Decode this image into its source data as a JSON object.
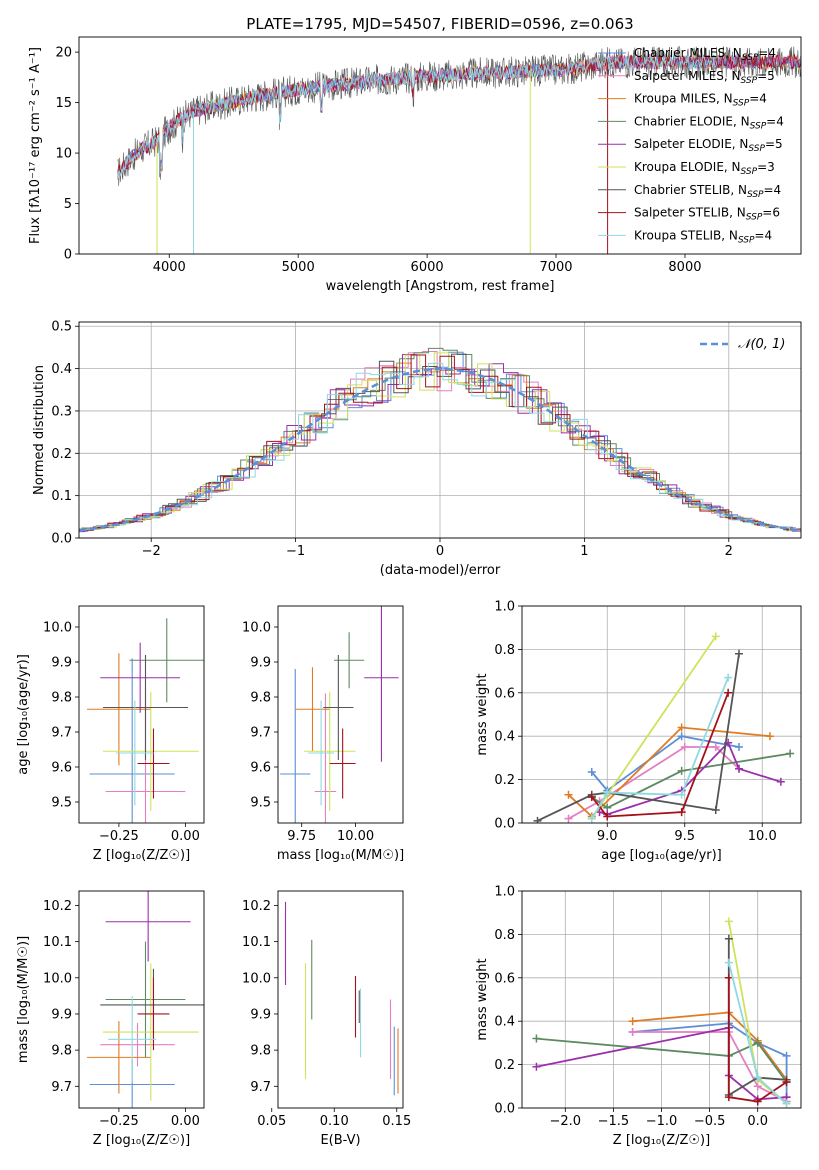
{
  "colors": {
    "chabrier_miles": "#5b8fd6",
    "salpeter_miles": "#e47fc2",
    "kroupa_miles": "#e07b22",
    "chabrier_elodie": "#5e8a62",
    "salpeter_elodie": "#9b2fae",
    "kroupa_elodie": "#cfe35a",
    "chabrier_stelib": "#555555",
    "salpeter_stelib": "#a3121b",
    "kroupa_stelib": "#8fd9e0",
    "normal": "#5b8fd6"
  },
  "chart_data": [
    {
      "id": "spectrum",
      "type": "line",
      "title": "PLATE=1795, MJD=54507, FIBERID=0596, z=0.063",
      "xlabel": "wavelength [Angstrom, rest frame]",
      "ylabel": "Flux [fλ10⁻¹⁷ erg cm⁻² s⁻¹ A⁻¹]",
      "xlim": [
        3300,
        8900
      ],
      "ylim": [
        0,
        21.5
      ],
      "xticks": [
        4000,
        5000,
        6000,
        7000,
        8000
      ],
      "yticks": [
        0,
        5,
        10,
        15,
        20
      ],
      "grid": false,
      "legend_position": "right",
      "legend": [
        {
          "label": "Chabrier MILES, N",
          "sub": "SSP",
          "tail": "=4",
          "color": "chabrier_miles"
        },
        {
          "label": "Salpeter MILES, N",
          "sub": "SSP",
          "tail": "=5",
          "color": "salpeter_miles"
        },
        {
          "label": "Kroupa MILES, N",
          "sub": "SSP",
          "tail": "=4",
          "color": "kroupa_miles"
        },
        {
          "label": "Chabrier ELODIE, N",
          "sub": "SSP",
          "tail": "=4",
          "color": "chabrier_elodie"
        },
        {
          "label": "Salpeter ELODIE, N",
          "sub": "SSP",
          "tail": "=5",
          "color": "salpeter_elodie"
        },
        {
          "label": "Kroupa ELODIE, N",
          "sub": "SSP",
          "tail": "=3",
          "color": "kroupa_elodie"
        },
        {
          "label": "Chabrier STELIB, N",
          "sub": "SSP",
          "tail": "=4",
          "color": "chabrier_stelib"
        },
        {
          "label": "Salpeter STELIB, N",
          "sub": "SSP",
          "tail": "=6",
          "color": "salpeter_stelib"
        },
        {
          "label": "Kroupa STELIB, N",
          "sub": "SSP",
          "tail": "=4",
          "color": "kroupa_stelib"
        }
      ],
      "continuum": {
        "x": [
          3600,
          3700,
          3800,
          3900,
          4000,
          4100,
          4200,
          4400,
          4600,
          4800,
          5000,
          5200,
          5400,
          5600,
          5800,
          6000,
          6200,
          6400,
          6600,
          6800,
          7000,
          7200,
          7400
        ],
        "y": [
          8,
          9.5,
          10.5,
          11.2,
          12.5,
          13.5,
          14.2,
          14.8,
          15.4,
          15.9,
          16.3,
          16.6,
          16.9,
          17.2,
          17.4,
          17.6,
          17.7,
          17.9,
          18.0,
          18.1,
          18.2,
          18.5,
          19.0
        ]
      },
      "data_end": 8950
    },
    {
      "id": "residuals",
      "type": "histogram",
      "xlabel": "(data-model)/error",
      "ylabel": "Normed distribution",
      "xlim": [
        -2.5,
        2.5
      ],
      "ylim": [
        0,
        0.51
      ],
      "xticks": [
        -2,
        -1,
        0,
        1,
        2
      ],
      "yticks": [
        0.0,
        0.1,
        0.2,
        0.3,
        0.4,
        0.5
      ],
      "grid": true,
      "legend_position": "top-right",
      "legend": [
        {
          "label": "𝒩(0, 1)",
          "color": "normal"
        }
      ],
      "bin_width": 0.1
    },
    {
      "id": "z-age",
      "type": "errorbar",
      "xlabel": "Z [log₁₀(Z/Z☉)]",
      "ylabel": "age  [log₁₀(age/yr)]",
      "xlim": [
        -0.4,
        0.07
      ],
      "ylim": [
        9.44,
        10.06
      ],
      "xticks": [
        -0.25,
        0.0
      ],
      "yticks": [
        9.5,
        9.6,
        9.7,
        9.8,
        9.9,
        10.0
      ],
      "grid": false,
      "points": [
        {
          "series": "chabrier_miles",
          "x": -0.2,
          "xerr": 0.16,
          "y": 9.58,
          "yerr": 0.33
        },
        {
          "series": "salpeter_miles",
          "x": -0.15,
          "xerr": 0.15,
          "y": 9.53,
          "yerr": 0.3
        },
        {
          "series": "kroupa_miles",
          "x": -0.25,
          "xerr": 0.12,
          "y": 9.765,
          "yerr": 0.16
        },
        {
          "series": "chabrier_elodie",
          "x": -0.07,
          "xerr": 0.14,
          "y": 9.905,
          "yerr": 0.12
        },
        {
          "series": "salpeter_elodie",
          "x": -0.17,
          "xerr": 0.15,
          "y": 9.855,
          "yerr": 0.1
        },
        {
          "series": "kroupa_elodie",
          "x": -0.13,
          "xerr": 0.18,
          "y": 9.645,
          "yerr": 0.17
        },
        {
          "series": "chabrier_stelib",
          "x": -0.15,
          "xerr": 0.16,
          "y": 9.77,
          "yerr": 0.15
        },
        {
          "series": "salpeter_stelib",
          "x": -0.12,
          "xerr": 0.06,
          "y": 9.61,
          "yerr": 0.1
        },
        {
          "series": "kroupa_stelib",
          "x": -0.19,
          "xerr": 0.07,
          "y": 9.64,
          "yerr": 0.15
        }
      ]
    },
    {
      "id": "mass-age",
      "type": "errorbar",
      "xlabel": "mass [log₁₀(M/M☉)]",
      "ylabel": "",
      "xlim": [
        9.64,
        10.22
      ],
      "ylim": [
        9.44,
        10.06
      ],
      "xticks": [
        9.75,
        10.0
      ],
      "yticks": [
        9.5,
        9.6,
        9.7,
        9.8,
        9.9,
        10.0
      ],
      "grid": false,
      "points": [
        {
          "series": "chabrier_miles",
          "x": 9.72,
          "xerr": 0.07,
          "y": 9.58,
          "yerr": 0.3
        },
        {
          "series": "salpeter_miles",
          "x": 9.86,
          "xerr": 0.05,
          "y": 9.53,
          "yerr": 0.28
        },
        {
          "series": "kroupa_miles",
          "x": 9.8,
          "xerr": 0.08,
          "y": 9.765,
          "yerr": 0.12
        },
        {
          "series": "chabrier_elodie",
          "x": 9.97,
          "xerr": 0.07,
          "y": 9.905,
          "yerr": 0.08
        },
        {
          "series": "salpeter_elodie",
          "x": 10.12,
          "xerr": 0.08,
          "y": 9.855,
          "yerr": 0.24
        },
        {
          "series": "kroupa_elodie",
          "x": 9.88,
          "xerr": 0.12,
          "y": 9.645,
          "yerr": 0.17
        },
        {
          "series": "chabrier_stelib",
          "x": 9.92,
          "xerr": 0.07,
          "y": 9.77,
          "yerr": 0.15
        },
        {
          "series": "salpeter_stelib",
          "x": 9.94,
          "xerr": 0.06,
          "y": 9.61,
          "yerr": 0.1
        },
        {
          "series": "kroupa_stelib",
          "x": 9.84,
          "xerr": 0.06,
          "y": 9.64,
          "yerr": 0.15
        }
      ]
    },
    {
      "id": "age-weight",
      "type": "line",
      "xlabel": "age  [log₁₀(age/yr)]",
      "ylabel": "mass weight",
      "xlim": [
        8.45,
        10.25
      ],
      "ylim": [
        0.0,
        1.0
      ],
      "xticks": [
        9.0,
        9.5,
        10.0
      ],
      "yticks": [
        0.0,
        0.2,
        0.4,
        0.6,
        0.8,
        1.0
      ],
      "grid": true,
      "series": [
        {
          "name": "chabrier_miles",
          "x": [
            8.9,
            9.0,
            9.48,
            9.85
          ],
          "y": [
            0.235,
            0.15,
            0.4,
            0.35
          ]
        },
        {
          "name": "salpeter_miles",
          "x": [
            8.75,
            8.95,
            9.5,
            9.7,
            9.85
          ],
          "y": [
            0.02,
            0.1,
            0.35,
            0.35,
            0.25
          ]
        },
        {
          "name": "kroupa_miles",
          "x": [
            8.75,
            8.9,
            9.48,
            10.05
          ],
          "y": [
            0.13,
            0.03,
            0.44,
            0.4
          ]
        },
        {
          "name": "chabrier_elodie",
          "x": [
            8.9,
            9.0,
            9.48,
            10.18
          ],
          "y": [
            0.12,
            0.07,
            0.24,
            0.32
          ]
        },
        {
          "name": "salpeter_elodie",
          "x": [
            8.95,
            9.0,
            9.48,
            9.78,
            9.85,
            10.12
          ],
          "y": [
            0.05,
            0.04,
            0.15,
            0.37,
            0.25,
            0.19
          ]
        },
        {
          "name": "kroupa_elodie",
          "x": [
            8.9,
            9.0,
            9.7
          ],
          "y": [
            0.02,
            0.13,
            0.86
          ]
        },
        {
          "name": "chabrier_stelib",
          "x": [
            8.55,
            8.9,
            9.0,
            9.7,
            9.85
          ],
          "y": [
            0.01,
            0.13,
            0.14,
            0.06,
            0.78
          ]
        },
        {
          "name": "salpeter_stelib",
          "x": [
            8.9,
            9.0,
            9.48,
            9.78
          ],
          "y": [
            0.12,
            0.03,
            0.05,
            0.6
          ]
        },
        {
          "name": "kroupa_stelib",
          "x": [
            8.9,
            9.0,
            9.48,
            9.78
          ],
          "y": [
            0.02,
            0.14,
            0.13,
            0.67
          ]
        }
      ]
    },
    {
      "id": "z-mass",
      "type": "errorbar",
      "xlabel": "Z [log₁₀(Z/Z☉)]",
      "ylabel": "mass [log₁₀(M/M☉)]",
      "xlim": [
        -0.4,
        0.07
      ],
      "ylim": [
        9.64,
        10.24
      ],
      "xticks": [
        -0.25,
        0.0
      ],
      "yticks": [
        9.7,
        9.8,
        9.9,
        10.0,
        10.1,
        10.2
      ],
      "grid": false,
      "points": [
        {
          "series": "chabrier_miles",
          "x": -0.2,
          "xerr": 0.16,
          "y": 9.705,
          "yerr": 0.07
        },
        {
          "series": "salpeter_miles",
          "x": -0.18,
          "xerr": 0.14,
          "y": 9.815,
          "yerr": 0.06
        },
        {
          "series": "kroupa_miles",
          "x": -0.25,
          "xerr": 0.12,
          "y": 9.78,
          "yerr": 0.1
        },
        {
          "series": "chabrier_elodie",
          "x": -0.15,
          "xerr": 0.15,
          "y": 9.94,
          "yerr": 0.16
        },
        {
          "series": "salpeter_elodie",
          "x": -0.14,
          "xerr": 0.16,
          "y": 10.155,
          "yerr": 0.11
        },
        {
          "series": "kroupa_elodie",
          "x": -0.13,
          "xerr": 0.18,
          "y": 9.85,
          "yerr": 0.19
        },
        {
          "series": "chabrier_stelib",
          "x": -0.12,
          "xerr": 0.2,
          "y": 9.925,
          "yerr": 0.1
        },
        {
          "series": "salpeter_stelib",
          "x": -0.12,
          "xerr": 0.06,
          "y": 9.9,
          "yerr": 0.1
        },
        {
          "series": "kroupa_stelib",
          "x": -0.2,
          "xerr": 0.09,
          "y": 9.83,
          "yerr": 0.12
        }
      ]
    },
    {
      "id": "ebv-mass",
      "type": "errorbar",
      "xlabel": "E(B-V)",
      "ylabel": "",
      "xlim": [
        0.055,
        0.155
      ],
      "ylim": [
        9.64,
        10.24
      ],
      "xticks": [
        0.05,
        0.1,
        0.15
      ],
      "yticks": [
        9.7,
        9.8,
        9.9,
        10.0,
        10.1,
        10.2
      ],
      "grid": false,
      "points": [
        {
          "series": "salpeter_elodie",
          "x": 0.061,
          "xerr": 0,
          "y": 10.095,
          "yerr": 0.115
        },
        {
          "series": "kroupa_elodie",
          "x": 0.077,
          "xerr": 0,
          "y": 9.88,
          "yerr": 0.16
        },
        {
          "series": "chabrier_elodie",
          "x": 0.082,
          "xerr": 0,
          "y": 9.995,
          "yerr": 0.11
        },
        {
          "series": "salpeter_stelib",
          "x": 0.117,
          "xerr": 0,
          "y": 9.92,
          "yerr": 0.085
        },
        {
          "series": "chabrier_stelib",
          "x": 0.12,
          "xerr": 0,
          "y": 9.92,
          "yerr": 0.045
        },
        {
          "series": "kroupa_stelib",
          "x": 0.121,
          "xerr": 0,
          "y": 9.875,
          "yerr": 0.095
        },
        {
          "series": "salpeter_miles",
          "x": 0.145,
          "xerr": 0,
          "y": 9.83,
          "yerr": 0.11
        },
        {
          "series": "chabrier_miles",
          "x": 0.148,
          "xerr": 0,
          "y": 9.77,
          "yerr": 0.095
        },
        {
          "series": "kroupa_miles",
          "x": 0.151,
          "xerr": 0,
          "y": 9.77,
          "yerr": 0.09
        }
      ]
    },
    {
      "id": "z-weight",
      "type": "line",
      "xlabel": "Z [log₁₀(Z/Z☉)]",
      "ylabel": "mass weight",
      "xlim": [
        -2.45,
        0.45
      ],
      "ylim": [
        0.0,
        1.0
      ],
      "xticks": [
        -2.0,
        -1.5,
        -1.0,
        -0.5,
        0.0
      ],
      "yticks": [
        0.0,
        0.2,
        0.4,
        0.6,
        0.8,
        1.0
      ],
      "grid": true,
      "series": [
        {
          "name": "chabrier_miles",
          "x": [
            -1.3,
            -0.3,
            0.0,
            0.3,
            0.3
          ],
          "y": [
            0.35,
            0.39,
            0.3,
            0.24,
            0.05
          ]
        },
        {
          "name": "salpeter_miles",
          "x": [
            -1.3,
            -0.3,
            0.0,
            0.3
          ],
          "y": [
            0.35,
            0.35,
            0.1,
            0.03
          ]
        },
        {
          "name": "kroupa_miles",
          "x": [
            -1.3,
            -0.3,
            0.0,
            0.3
          ],
          "y": [
            0.4,
            0.44,
            0.31,
            0.13
          ]
        },
        {
          "name": "chabrier_elodie",
          "x": [
            -2.3,
            -0.3,
            0.0,
            0.3
          ],
          "y": [
            0.32,
            0.24,
            0.3,
            0.12
          ]
        },
        {
          "name": "salpeter_elodie",
          "x": [
            -2.3,
            -0.3,
            -0.3,
            0.0,
            0.3
          ],
          "y": [
            0.19,
            0.37,
            0.15,
            0.04,
            0.05
          ]
        },
        {
          "name": "kroupa_elodie",
          "x": [
            -0.3,
            0.0,
            0.3
          ],
          "y": [
            0.86,
            0.13,
            0.02
          ]
        },
        {
          "name": "chabrier_stelib",
          "x": [
            -0.3,
            -0.3,
            0.0,
            0.3
          ],
          "y": [
            0.78,
            0.06,
            0.14,
            0.13
          ]
        },
        {
          "name": "salpeter_stelib",
          "x": [
            -0.3,
            -0.3,
            0.0,
            0.3
          ],
          "y": [
            0.6,
            0.05,
            0.03,
            0.12
          ]
        },
        {
          "name": "kroupa_stelib",
          "x": [
            -0.3,
            0.0,
            0.3
          ],
          "y": [
            0.67,
            0.14,
            0.02
          ]
        }
      ]
    }
  ]
}
